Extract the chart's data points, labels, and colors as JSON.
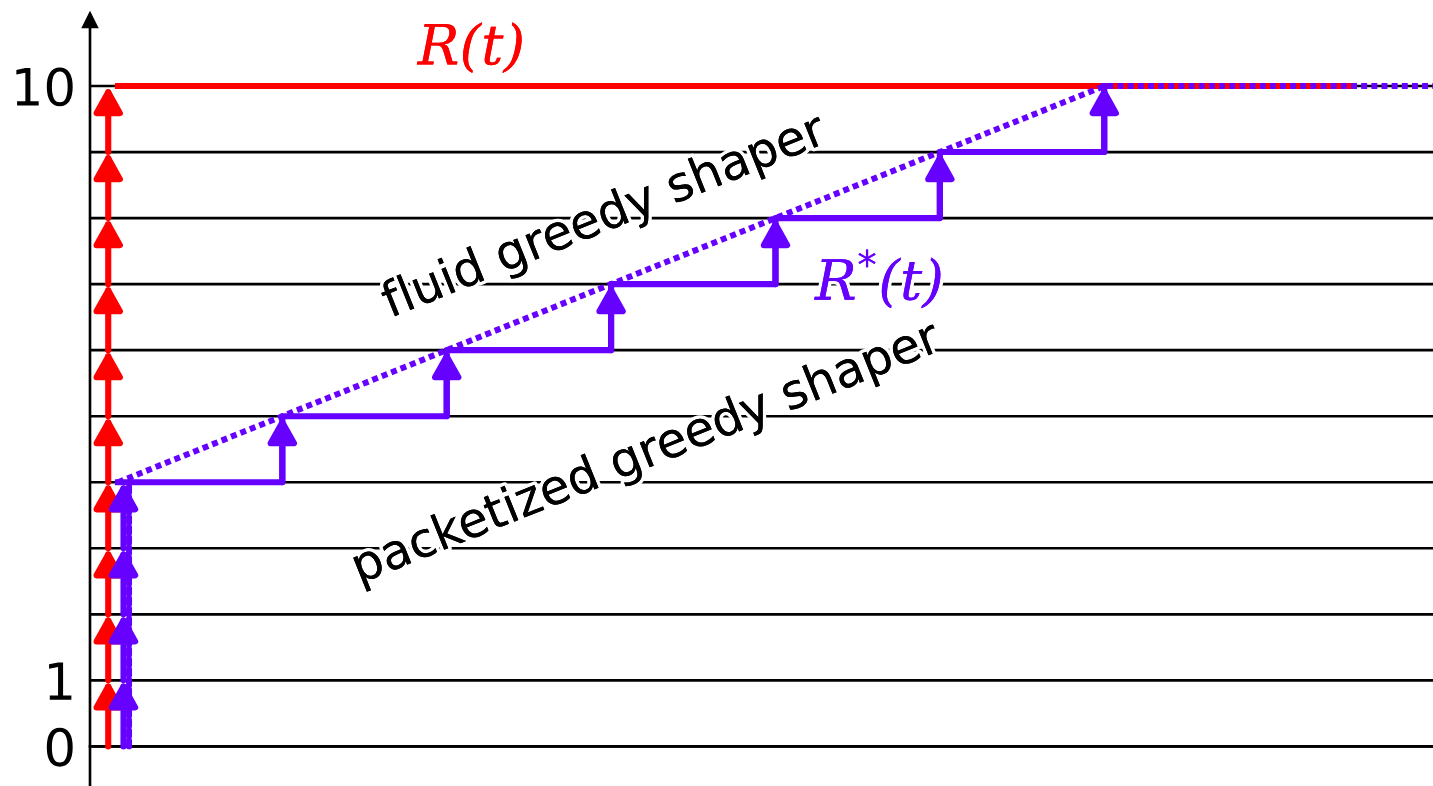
{
  "chart_data": {
    "type": "step",
    "categories": [
      null,
      null,
      null,
      null,
      null,
      null,
      null,
      null,
      null,
      null,
      null,
      null,
      null,
      null,
      null,
      null,
      null
    ],
    "ylim": [
      -0.6,
      11
    ],
    "yticks": [
      0,
      1,
      {
        "value": 2,
        "label": null
      },
      {
        "value": 3,
        "label": null
      },
      {
        "value": 4,
        "label": null
      },
      {
        "value": 5,
        "label": null
      },
      {
        "value": 6,
        "label": null
      },
      {
        "value": 7,
        "label": null
      },
      {
        "value": 8,
        "label": null
      },
      {
        "value": 9,
        "label": null
      },
      10
    ],
    "grid": "y",
    "tick_labels": "y",
    "series": [
      {
        "name": "R(t)",
        "color": "#ff0000",
        "values": [
          10,
          10,
          10,
          10,
          10,
          10,
          10,
          10,
          10,
          10,
          10,
          10,
          10,
          10,
          10,
          10,
          null
        ]
      },
      {
        "name": "R$^{*}$(t)",
        "color": "#6600ff",
        "values": [
          4,
          4,
          5,
          5,
          6,
          6,
          7,
          7,
          8,
          8,
          9,
          9,
          10,
          null,
          null,
          null,
          null
        ]
      },
      {
        "type": "line",
        "line_style": "dotted",
        "color": "#6600ff",
        "values": [
          4,
          4.5,
          5,
          5.5,
          6,
          6.5,
          7,
          7.5,
          8,
          8.5,
          9,
          9.5,
          10,
          10,
          10,
          10,
          10
        ]
      }
    ],
    "annotations": [
      "fluid greedy shaper",
      "packetized greedy shaper"
    ]
  }
}
